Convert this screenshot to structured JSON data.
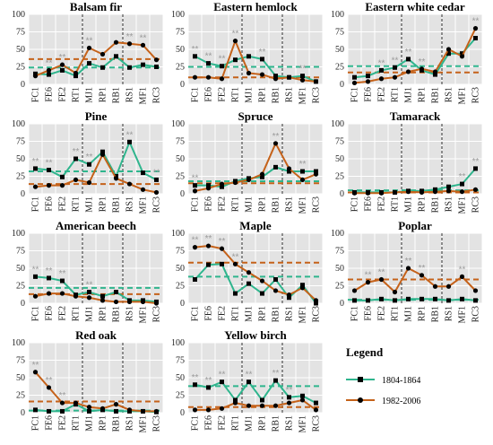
{
  "colors": {
    "series_a": "#2fb58d",
    "series_b": "#c5621a",
    "plot_bg": "#e3e3e3",
    "grid": "#ffffff",
    "marker": "#000000",
    "star": "#9a9a9a"
  },
  "chart_data": [
    {
      "type": "line",
      "title": "Balsam fir",
      "categories": [
        "FC1",
        "FE6",
        "FE2",
        "RT1",
        "MJ1",
        "RP1",
        "RB1",
        "RS1",
        "MF1",
        "RC3"
      ],
      "ylim": [
        0,
        100
      ],
      "yticks": [
        0,
        25,
        50,
        75,
        100
      ],
      "region_breaks_after": [
        "RT1",
        "RB1"
      ],
      "series": [
        {
          "name": "1804-1864",
          "values": [
            15,
            14,
            20,
            12,
            30,
            24,
            40,
            24,
            28,
            25
          ],
          "mean": 24
        },
        {
          "name": "1982-2006",
          "values": [
            12,
            20,
            28,
            16,
            52,
            43,
            60,
            58,
            56,
            35
          ],
          "mean": 36
        }
      ],
      "significant": [
        "FE6",
        "FE2",
        "MJ1",
        "RS1",
        "MF1"
      ]
    },
    {
      "type": "line",
      "title": "Eastern hemlock",
      "categories": [
        "FC1",
        "FE6",
        "FE2",
        "RT1",
        "MJ1",
        "RP1",
        "RB1",
        "RS1",
        "MF1",
        "RC3"
      ],
      "ylim": [
        0,
        100
      ],
      "yticks": [
        0,
        25,
        50,
        75,
        100
      ],
      "region_breaks_after": [
        "RT1",
        "RB1"
      ],
      "series": [
        {
          "name": "1804-1864",
          "values": [
            40,
            30,
            26,
            35,
            40,
            36,
            12,
            10,
            12,
            4
          ],
          "mean": 25
        },
        {
          "name": "1982-2006",
          "values": [
            10,
            10,
            8,
            62,
            16,
            14,
            8,
            10,
            6,
            4
          ],
          "mean": 10
        }
      ],
      "significant": [
        "FC1",
        "FE6",
        "FE2",
        "RT1",
        "RP1",
        "MF1"
      ]
    },
    {
      "type": "line",
      "title": "Eastern white cedar",
      "categories": [
        "FC1",
        "FE6",
        "FE2",
        "RT1",
        "MJ1",
        "RP1",
        "RB1",
        "RS1",
        "MF1",
        "RC3"
      ],
      "ylim": [
        0,
        100
      ],
      "yticks": [
        0,
        25,
        50,
        75,
        100
      ],
      "region_breaks_after": [
        "RT1",
        "RB1"
      ],
      "series": [
        {
          "name": "1804-1864",
          "values": [
            10,
            12,
            20,
            24,
            36,
            20,
            14,
            44,
            44,
            66
          ],
          "mean": 26
        },
        {
          "name": "1982-2006",
          "values": [
            2,
            4,
            8,
            10,
            18,
            22,
            18,
            50,
            40,
            80
          ],
          "mean": 17
        }
      ],
      "significant": [
        "FE2",
        "RT1",
        "MJ1",
        "RP1",
        "RC3"
      ]
    },
    {
      "type": "line",
      "title": "Pine",
      "categories": [
        "FC1",
        "FE6",
        "FE2",
        "RT1",
        "MJ1",
        "RP1",
        "RB1",
        "RS1",
        "MF1",
        "RC3"
      ],
      "ylim": [
        0,
        100
      ],
      "yticks": [
        0,
        25,
        50,
        75,
        100
      ],
      "region_breaks_after": [
        "RT1",
        "RB1"
      ],
      "series": [
        {
          "name": "1804-1864",
          "values": [
            36,
            34,
            24,
            50,
            42,
            60,
            25,
            74,
            30,
            20
          ],
          "mean": 32
        },
        {
          "name": "1982-2006",
          "values": [
            10,
            12,
            12,
            20,
            16,
            56,
            22,
            14,
            6,
            2
          ],
          "mean": 14
        }
      ],
      "significant": [
        "FC1",
        "FE6",
        "RT1",
        "MJ1",
        "RS1",
        "RC3"
      ]
    },
    {
      "type": "line",
      "title": "Spruce",
      "categories": [
        "FC1",
        "FE6",
        "FE2",
        "RT1",
        "MJ1",
        "RP1",
        "RB1",
        "RS1",
        "MF1",
        "RC3"
      ],
      "ylim": [
        0,
        100
      ],
      "yticks": [
        0,
        25,
        50,
        75,
        100
      ],
      "region_breaks_after": [
        "RT1",
        "RB1"
      ],
      "series": [
        {
          "name": "1804-1864",
          "values": [
            12,
            12,
            10,
            18,
            22,
            24,
            38,
            32,
            32,
            32
          ],
          "mean": 18
        },
        {
          "name": "1982-2006",
          "values": [
            4,
            8,
            14,
            16,
            20,
            28,
            72,
            36,
            20,
            28
          ],
          "mean": 15
        }
      ],
      "significant": [
        "FC1",
        "RB1",
        "MF1"
      ]
    },
    {
      "type": "line",
      "title": "Tamarack",
      "categories": [
        "FC1",
        "FE6",
        "FE2",
        "RT1",
        "MJ1",
        "RP1",
        "RB1",
        "RS1",
        "MF1",
        "RC3"
      ],
      "ylim": [
        0,
        100
      ],
      "yticks": [
        0,
        25,
        50,
        75,
        100
      ],
      "region_breaks_after": [
        "RT1",
        "RB1"
      ],
      "series": [
        {
          "name": "1804-1864",
          "values": [
            2,
            2,
            2,
            2,
            4,
            4,
            6,
            10,
            14,
            36
          ],
          "mean": 5
        },
        {
          "name": "1982-2006",
          "values": [
            1,
            1,
            1,
            2,
            3,
            2,
            3,
            4,
            3,
            6
          ],
          "mean": 2
        }
      ],
      "significant": [
        "MF1",
        "RC3"
      ]
    },
    {
      "type": "line",
      "title": "American beech",
      "categories": [
        "FC1",
        "FE6",
        "FE2",
        "RT1",
        "MJ1",
        "RP1",
        "RB1",
        "RS1",
        "MF1",
        "RC3"
      ],
      "ylim": [
        0,
        100
      ],
      "yticks": [
        0,
        25,
        50,
        75,
        100
      ],
      "region_breaks_after": [
        "RT1",
        "RB1"
      ],
      "series": [
        {
          "name": "1804-1864",
          "values": [
            38,
            36,
            32,
            12,
            16,
            10,
            16,
            4,
            4,
            2
          ],
          "mean": 22
        },
        {
          "name": "1982-2006",
          "values": [
            10,
            14,
            14,
            10,
            8,
            4,
            2,
            2,
            2,
            0
          ],
          "mean": 13
        }
      ],
      "significant": [
        "FC1",
        "FE6",
        "FE2",
        "MJ1"
      ]
    },
    {
      "type": "line",
      "title": "Maple",
      "categories": [
        "FC1",
        "FE6",
        "FE2",
        "RT1",
        "MJ1",
        "RP1",
        "RB1",
        "RS1",
        "MF1",
        "RC3"
      ],
      "ylim": [
        0,
        100
      ],
      "yticks": [
        0,
        25,
        50,
        75,
        100
      ],
      "region_breaks_after": [
        "RT1",
        "RB1"
      ],
      "series": [
        {
          "name": "1804-1864",
          "values": [
            34,
            55,
            56,
            14,
            28,
            14,
            34,
            8,
            26,
            0
          ],
          "mean": 38
        },
        {
          "name": "1982-2006",
          "values": [
            80,
            82,
            78,
            56,
            44,
            32,
            18,
            12,
            22,
            4
          ],
          "mean": 58
        }
      ],
      "significant": [
        "FC1",
        "FE6",
        "FE2",
        "RT1"
      ]
    },
    {
      "type": "line",
      "title": "Poplar",
      "categories": [
        "FC1",
        "FE6",
        "FE2",
        "RT1",
        "MJ1",
        "RP1",
        "RB1",
        "RS1",
        "MF1",
        "RC3"
      ],
      "ylim": [
        0,
        100
      ],
      "yticks": [
        0,
        25,
        50,
        75,
        100
      ],
      "region_breaks_after": [
        "RT1",
        "RB1"
      ],
      "series": [
        {
          "name": "1804-1864",
          "values": [
            4,
            4,
            6,
            4,
            6,
            6,
            6,
            4,
            6,
            4
          ],
          "mean": 5
        },
        {
          "name": "1982-2006",
          "values": [
            18,
            30,
            34,
            16,
            50,
            40,
            24,
            24,
            38,
            18
          ],
          "mean": 34
        }
      ],
      "significant": [
        "FE6",
        "FE2",
        "MJ1",
        "RP1",
        "MF1"
      ]
    },
    {
      "type": "line",
      "title": "Red oak",
      "categories": [
        "FC1",
        "FE6",
        "FE2",
        "RT1",
        "MJ1",
        "RP1",
        "RB1",
        "RS1",
        "MF1",
        "RC3"
      ],
      "ylim": [
        0,
        100
      ],
      "yticks": [
        0,
        25,
        50,
        75,
        100
      ],
      "region_breaks_after": [
        "RT1",
        "RB1"
      ],
      "series": [
        {
          "name": "1804-1864",
          "values": [
            4,
            2,
            2,
            12,
            2,
            4,
            2,
            2,
            2,
            1
          ],
          "mean": 3
        },
        {
          "name": "1982-2006",
          "values": [
            58,
            36,
            14,
            14,
            8,
            6,
            12,
            4,
            2,
            2
          ],
          "mean": 16
        }
      ],
      "significant": [
        "FC1",
        "FE6",
        "FE2"
      ]
    },
    {
      "type": "line",
      "title": "Yellow birch",
      "categories": [
        "FC1",
        "FE6",
        "FE2",
        "RT1",
        "MJ1",
        "RP1",
        "RB1",
        "RS1",
        "MF1",
        "RC3"
      ],
      "ylim": [
        0,
        100
      ],
      "yticks": [
        0,
        25,
        50,
        75,
        100
      ],
      "region_breaks_after": [
        "RT1",
        "RB1"
      ],
      "series": [
        {
          "name": "1804-1864",
          "values": [
            40,
            36,
            44,
            18,
            44,
            18,
            46,
            22,
            24,
            14
          ],
          "mean": 38
        },
        {
          "name": "1982-2006",
          "values": [
            4,
            4,
            6,
            14,
            10,
            10,
            10,
            14,
            18,
            4
          ],
          "mean": 8
        }
      ],
      "significant": [
        "FC1",
        "FE6",
        "FE2",
        "MJ1",
        "RB1",
        "RS1"
      ]
    }
  ],
  "legend": {
    "title": "Legend",
    "items": [
      {
        "label": "1804-1864",
        "series": "series_a"
      },
      {
        "label": "1982-2006",
        "series": "series_b"
      }
    ]
  },
  "significance_mark": "**"
}
